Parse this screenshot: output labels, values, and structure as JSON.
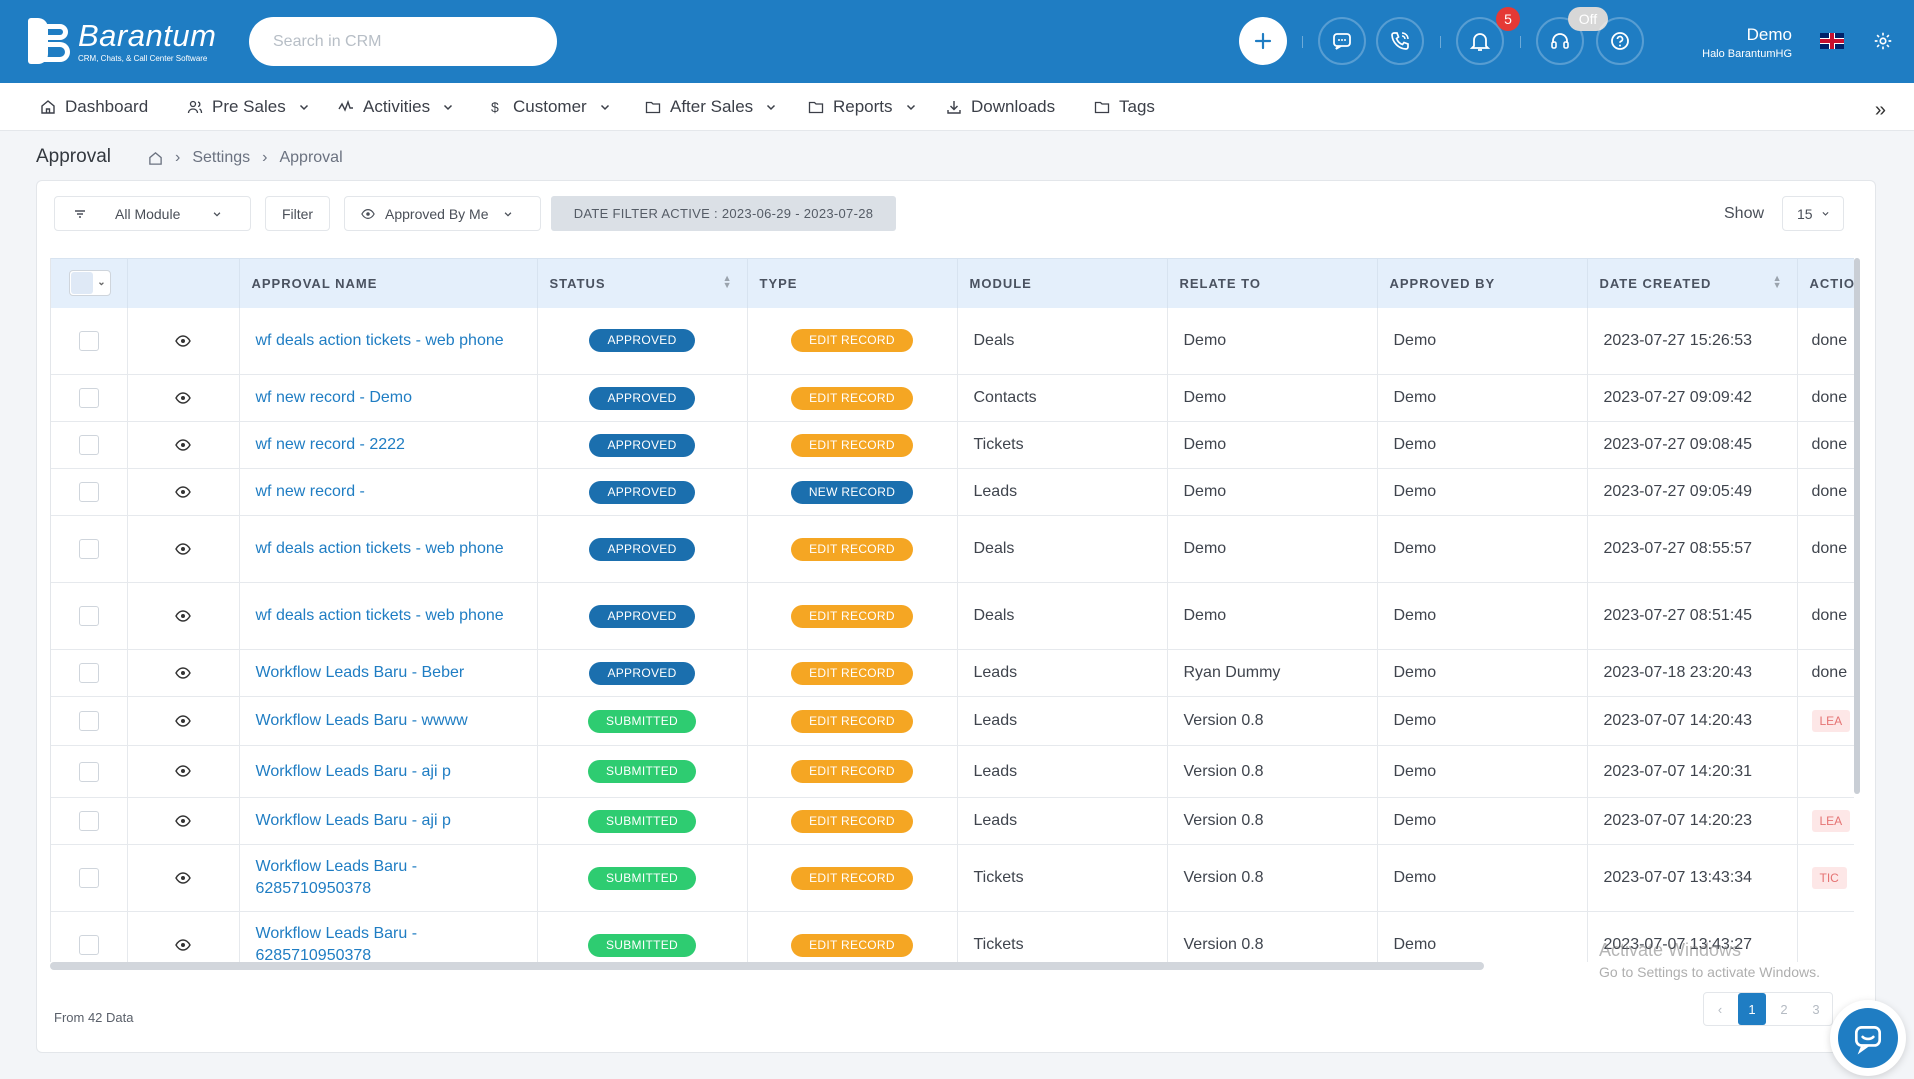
{
  "brand": {
    "name": "Barantum",
    "tagline": "CRM, Chats, & Call Center Software"
  },
  "search": {
    "placeholder": "Search in CRM"
  },
  "header": {
    "notification_count": "5",
    "agent_status": "Off",
    "user_name": "Demo",
    "company": "Halo BarantumHG",
    "icons": [
      "plus-icon",
      "chat-icon",
      "phone-icon",
      "bell-icon",
      "headset-icon",
      "help-icon",
      "uk-flag-icon",
      "gear-icon"
    ]
  },
  "nav": {
    "items": [
      {
        "label": "Dashboard",
        "icon": "home-icon"
      },
      {
        "label": "Pre Sales",
        "icon": "users-icon"
      },
      {
        "label": "Activities",
        "icon": "activity-icon"
      },
      {
        "label": "Customer",
        "icon": "dollar-icon"
      },
      {
        "label": "After Sales",
        "icon": "folder-icon"
      },
      {
        "label": "Reports",
        "icon": "folder-icon"
      },
      {
        "label": "Downloads",
        "icon": "download-icon"
      },
      {
        "label": "Tags",
        "icon": "folder-icon"
      }
    ],
    "collapse_glyph": "»"
  },
  "page": {
    "title": "Approval",
    "breadcrumb": [
      "Settings",
      "Approval"
    ],
    "breadcrumb_sep": "›"
  },
  "filters": {
    "module": "All Module",
    "filter": "Filter",
    "approved_by": "Approved By Me",
    "date_filter": "DATE FILTER ACTIVE : 2023-06-29 - 2023-07-28",
    "show_label": "Show",
    "show_value": "15"
  },
  "table": {
    "columns": [
      "APPROVAL NAME",
      "STATUS",
      "TYPE",
      "MODULE",
      "RELATE TO",
      "APPROVED BY",
      "DATE CREATED",
      "ACTIO"
    ],
    "rows": [
      {
        "name": "wf deals action tickets - web phone",
        "status": "APPROVED",
        "type": "EDIT RECORD",
        "module": "Deals",
        "relate": "Demo",
        "approved_by": "Demo",
        "date": "2023-07-27 15:26:53",
        "action": "done"
      },
      {
        "name": "wf new record - Demo",
        "status": "APPROVED",
        "type": "EDIT RECORD",
        "module": "Contacts",
        "relate": "Demo",
        "approved_by": "Demo",
        "date": "2023-07-27 09:09:42",
        "action": "done"
      },
      {
        "name": "wf new record - 2222",
        "status": "APPROVED",
        "type": "EDIT RECORD",
        "module": "Tickets",
        "relate": "Demo",
        "approved_by": "Demo",
        "date": "2023-07-27 09:08:45",
        "action": "done"
      },
      {
        "name": "wf new record -",
        "status": "APPROVED",
        "type": "NEW RECORD",
        "module": "Leads",
        "relate": "Demo",
        "approved_by": "Demo",
        "date": "2023-07-27 09:05:49",
        "action": "done"
      },
      {
        "name": "wf deals action tickets - web phone",
        "status": "APPROVED",
        "type": "EDIT RECORD",
        "module": "Deals",
        "relate": "Demo",
        "approved_by": "Demo",
        "date": "2023-07-27 08:55:57",
        "action": "done"
      },
      {
        "name": "wf deals action tickets - web phone",
        "status": "APPROVED",
        "type": "EDIT RECORD",
        "module": "Deals",
        "relate": "Demo",
        "approved_by": "Demo",
        "date": "2023-07-27 08:51:45",
        "action": "done"
      },
      {
        "name": "Workflow Leads Baru - Beber",
        "status": "APPROVED",
        "type": "EDIT RECORD",
        "module": "Leads",
        "relate": "Ryan Dummy",
        "approved_by": "Demo",
        "date": "2023-07-18 23:20:43",
        "action": "done"
      },
      {
        "name": "Workflow Leads Baru - wwww",
        "status": "SUBMITTED",
        "type": "EDIT RECORD",
        "module": "Leads",
        "relate": "Version 0.8",
        "approved_by": "Demo",
        "date": "2023-07-07 14:20:43",
        "action_tag": "LEA"
      },
      {
        "name": "Workflow Leads Baru - aji p",
        "status": "SUBMITTED",
        "type": "EDIT RECORD",
        "module": "Leads",
        "relate": "Version 0.8",
        "approved_by": "Demo",
        "date": "2023-07-07 14:20:31"
      },
      {
        "name": "Workflow Leads Baru - aji p",
        "status": "SUBMITTED",
        "type": "EDIT RECORD",
        "module": "Leads",
        "relate": "Version 0.8",
        "approved_by": "Demo",
        "date": "2023-07-07 14:20:23",
        "action_tag": "LEA"
      },
      {
        "name": "Workflow Leads Baru - 6285710950378",
        "status": "SUBMITTED",
        "type": "EDIT RECORD",
        "module": "Tickets",
        "relate": "Version 0.8",
        "approved_by": "Demo",
        "date": "2023-07-07 13:43:34",
        "action_tag": "TIC"
      },
      {
        "name": "Workflow Leads Baru - 6285710950378",
        "status": "SUBMITTED",
        "type": "EDIT RECORD",
        "module": "Tickets",
        "relate": "Version 0.8",
        "approved_by": "Demo",
        "date": "2023-07-07 13:43:27"
      }
    ]
  },
  "footer": {
    "from_text": "From 42 Data",
    "pages": [
      "1",
      "2",
      "3"
    ],
    "prev": "‹"
  },
  "watermark": {
    "line1": "Activate Windows",
    "line2": "Go to Settings to activate Windows."
  },
  "colors": {
    "primary": "#1f7dc3",
    "approved": "#1b6fae",
    "submitted": "#2ecc71",
    "edit_record": "#f5a623"
  }
}
